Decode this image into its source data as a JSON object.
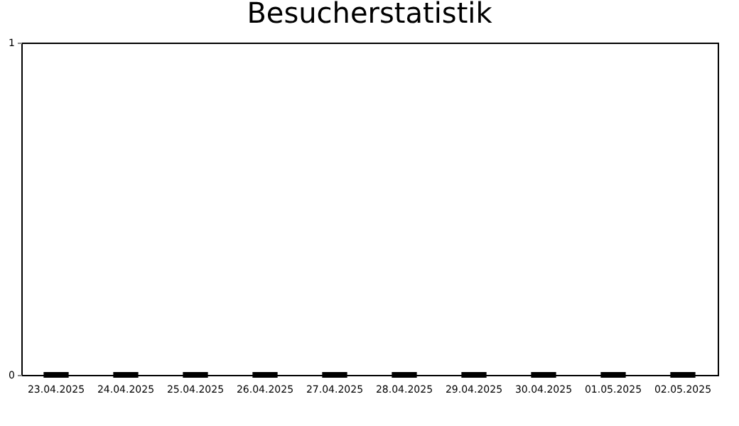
{
  "chart_data": {
    "type": "bar",
    "title": "Besucherstatistik",
    "categories": [
      "23.04.2025",
      "24.04.2025",
      "25.04.2025",
      "26.04.2025",
      "27.04.2025",
      "28.04.2025",
      "29.04.2025",
      "30.04.2025",
      "01.05.2025",
      "02.05.2025"
    ],
    "values": [
      0,
      0,
      0,
      0,
      0,
      0,
      0,
      0,
      0,
      0
    ],
    "color": "#000000",
    "ylim": [
      0,
      1
    ],
    "yticks": [
      0,
      1
    ],
    "grid": false
  }
}
